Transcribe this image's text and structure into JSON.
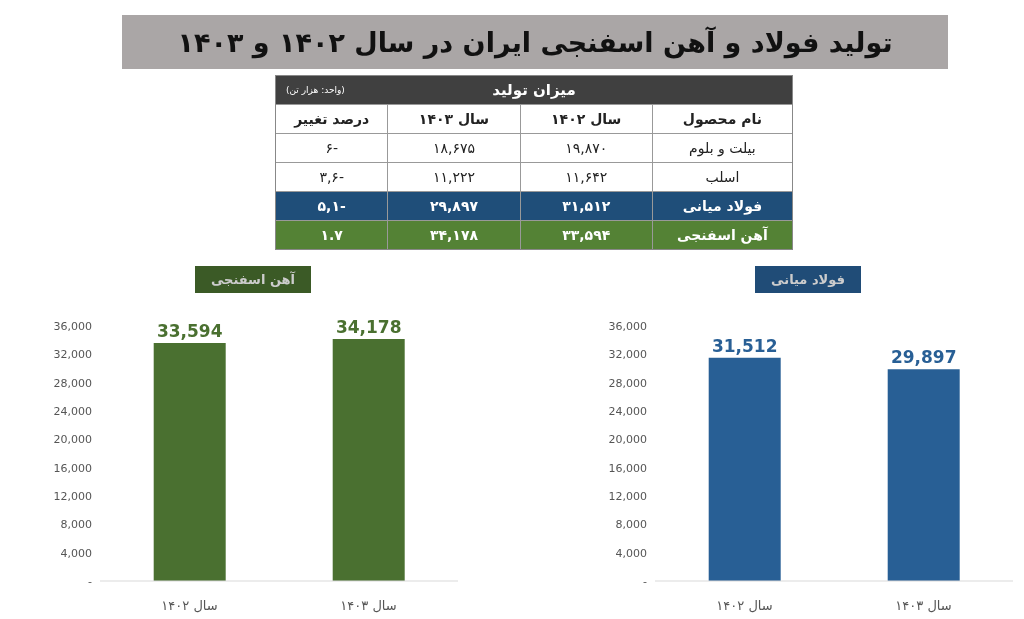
{
  "chart_data": [
    {
      "type": "other",
      "title": "تولید فولاد و آهن اسفنجی ایران در سال ۱۴۰۲ و ۱۴۰۳",
      "subtitle": "میزان تولید",
      "annotations": [
        "(واحد: هزار تن)",
        "نام محصول",
        "سال ۱۴۰۲",
        "سال ۱۴۰۳",
        "درصد تغییر",
        "بیلت و بلوم",
        "۱۹,۸۷۰",
        "۱۸,۶۷۵",
        "-۶",
        "اسلب",
        "۱۱,۶۴۲",
        "۱۱,۲۲۲",
        "-۳,۶",
        "فولاد میانی",
        "۳۱,۵۱۲",
        "۲۹,۸۹۷",
        "-۵,۱",
        "آهن اسفنجی",
        "۳۳,۵۹۴",
        "۳۴,۱۷۸",
        "۱.۷"
      ]
    },
    {
      "type": "bar",
      "title": "آهن اسفنجی",
      "categories": [
        "سال ۱۴۰۲",
        "سال ۱۴۰۳"
      ],
      "ylim": [
        0,
        36000
      ],
      "yticks": [
        {
          "value": 0,
          "label": "-"
        },
        {
          "value": 4000,
          "label": "4,000"
        },
        {
          "value": 8000,
          "label": "8,000"
        },
        {
          "value": 12000,
          "label": "12,000"
        },
        {
          "value": 16000,
          "label": "16,000"
        },
        {
          "value": 20000,
          "label": "20,000"
        },
        {
          "value": 24000,
          "label": "24,000"
        },
        {
          "value": 28000,
          "label": "28,000"
        },
        {
          "value": 32000,
          "label": "32,000"
        },
        {
          "value": 36000,
          "label": "36,000"
        }
      ],
      "series": [
        {
          "color": "#4a7030",
          "values": [
            33594,
            34178
          ],
          "value_labels": [
            "33,594",
            "34,178"
          ]
        }
      ]
    },
    {
      "type": "bar",
      "title": "فولاد میانی",
      "categories": [
        "سال ۱۴۰۲",
        "سال ۱۴۰۳"
      ],
      "ylim": [
        0,
        36000
      ],
      "yticks": [
        {
          "value": 0,
          "label": "-"
        },
        {
          "value": 4000,
          "label": "4,000"
        },
        {
          "value": 8000,
          "label": "8,000"
        },
        {
          "value": 12000,
          "label": "12,000"
        },
        {
          "value": 16000,
          "label": "16,000"
        },
        {
          "value": 20000,
          "label": "20,000"
        },
        {
          "value": 24000,
          "label": "24,000"
        },
        {
          "value": 28000,
          "label": "28,000"
        },
        {
          "value": 32000,
          "label": "32,000"
        },
        {
          "value": 36000,
          "label": "36,000"
        }
      ],
      "series": [
        {
          "color": "#285f95",
          "values": [
            31512,
            29897
          ],
          "value_labels": [
            "31,512",
            "29,897"
          ]
        }
      ]
    }
  ]
}
